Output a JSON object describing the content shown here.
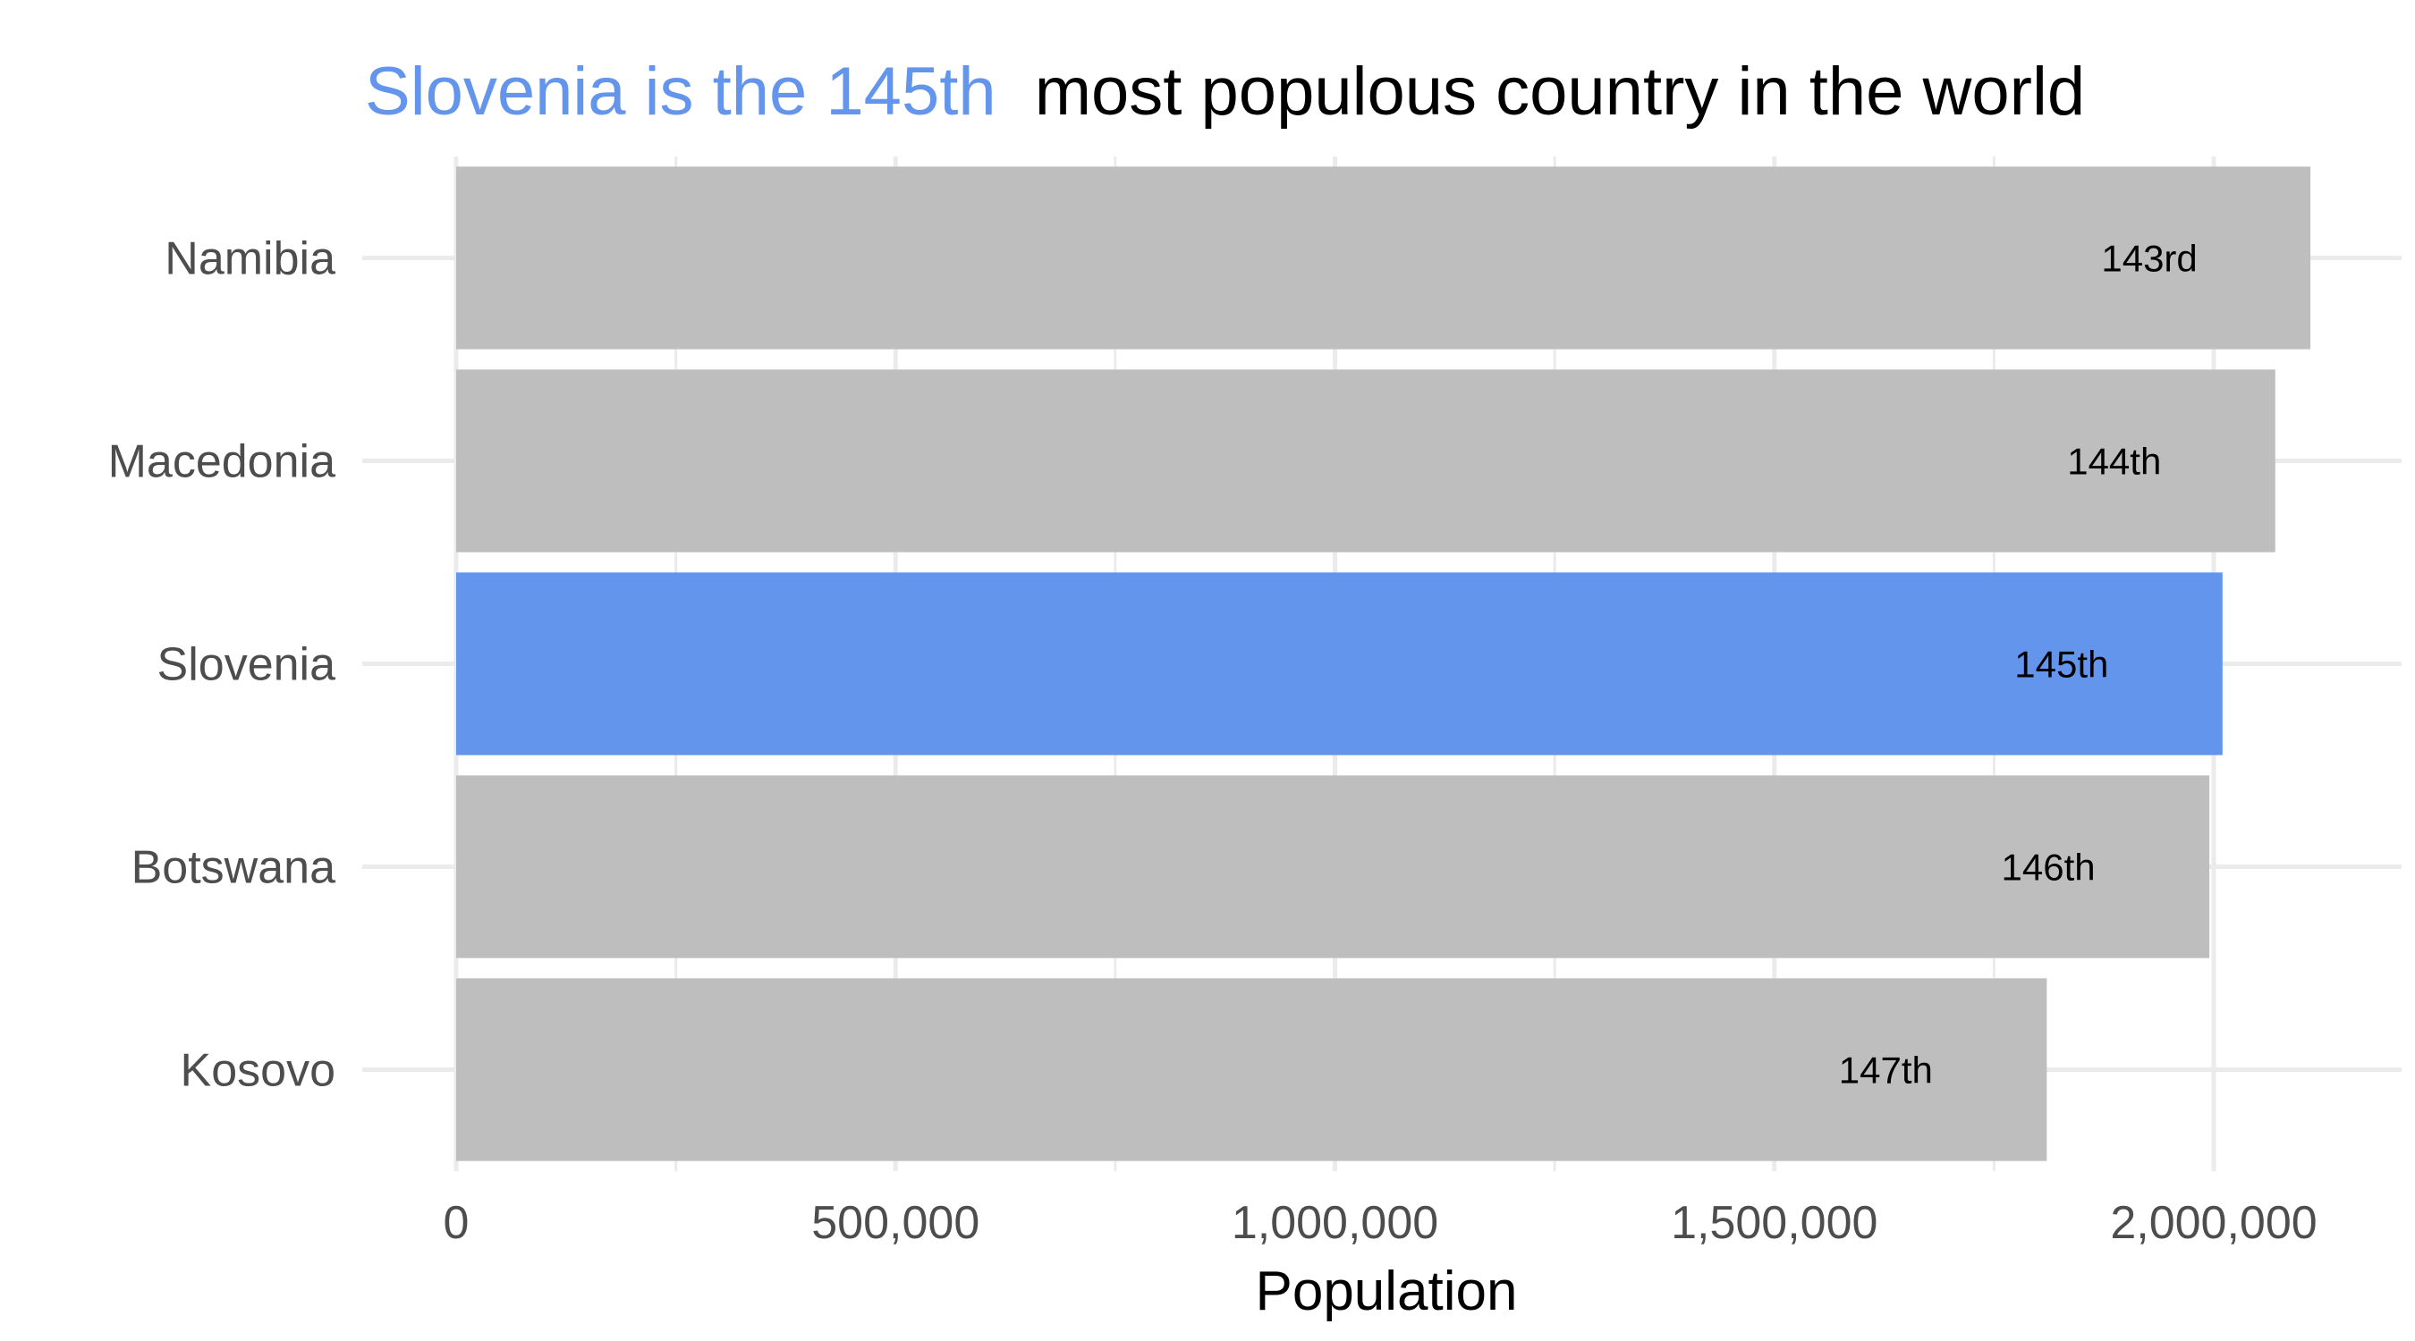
{
  "chart_data": {
    "type": "bar",
    "orientation": "horizontal",
    "title_highlight": "Slovenia is the 145th",
    "title_rest": "most populous country in the world",
    "xlabel": "Population",
    "ylabel": "",
    "xlim": [
      0,
      2200000
    ],
    "x_ticks": [
      0,
      500000,
      1000000,
      1500000,
      2000000
    ],
    "x_tick_labels": [
      "0",
      "500,000",
      "1,000,000",
      "1,500,000",
      "2,000,000"
    ],
    "grid": true,
    "legend": "none",
    "categories": [
      "Namibia",
      "Macedonia",
      "Slovenia",
      "Botswana",
      "Kosovo"
    ],
    "values": [
      2110000,
      2070000,
      2010000,
      1995000,
      1810000
    ],
    "bar_labels": [
      "143rd",
      "144th",
      "145th",
      "146th",
      "147th"
    ],
    "highlight_category": "Slovenia",
    "colors": {
      "highlight": "#6495ED",
      "default": "#BEBEBE",
      "grid": "#EBEBEB",
      "title_rest": "#000000"
    }
  }
}
